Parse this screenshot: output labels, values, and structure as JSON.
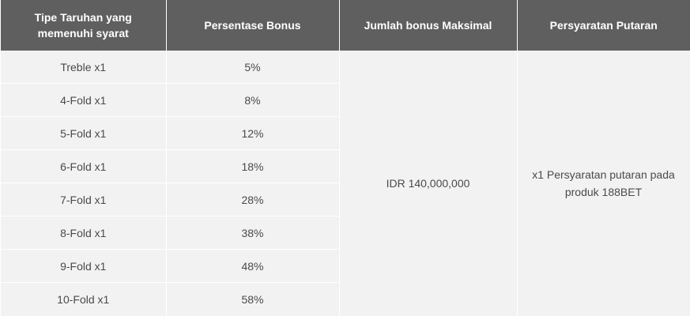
{
  "headers": {
    "bet_type_line1": "Tipe Taruhan yang",
    "bet_type_line2": "memenuhi syarat",
    "bonus_percent": "Persentase Bonus",
    "max_bonus": "Jumlah bonus Maksimal",
    "rollover": "Persyaratan Putaran"
  },
  "rows": [
    {
      "bet_type": "Treble x1",
      "percent": "5%"
    },
    {
      "bet_type": "4-Fold x1",
      "percent": "8%"
    },
    {
      "bet_type": "5-Fold x1",
      "percent": "12%"
    },
    {
      "bet_type": "6-Fold x1",
      "percent": "18%"
    },
    {
      "bet_type": "7-Fold x1",
      "percent": "28%"
    },
    {
      "bet_type": "8-Fold x1",
      "percent": "38%"
    },
    {
      "bet_type": "9-Fold x1",
      "percent": "48%"
    },
    {
      "bet_type": "10-Fold x1",
      "percent": "58%"
    }
  ],
  "max_bonus_value": "IDR 140,000,000",
  "rollover_line1": "x1 Persyaratan putaran pada",
  "rollover_line2": "produk 188BET"
}
